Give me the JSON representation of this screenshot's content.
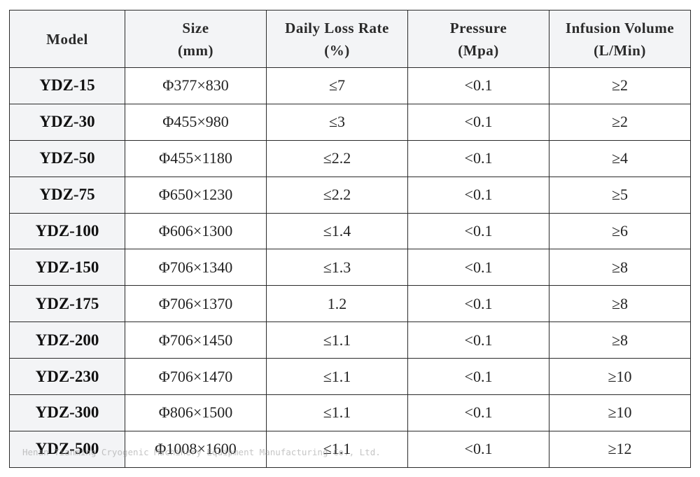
{
  "table": {
    "headers": [
      {
        "line1": "Model",
        "line2": ""
      },
      {
        "line1": "Size",
        "line2": "(mm)"
      },
      {
        "line1": "Daily Loss Rate",
        "line2": "(%)"
      },
      {
        "line1": "Pressure",
        "line2": "(Mpa)"
      },
      {
        "line1": "Infusion Volume",
        "line2": "(L/Min)"
      }
    ],
    "rows": [
      {
        "model": "YDZ-15",
        "size": "Φ377×830",
        "loss": "≤7",
        "pressure": "<0.1",
        "volume": "≥2"
      },
      {
        "model": "YDZ-30",
        "size": "Φ455×980",
        "loss": "≤3",
        "pressure": "<0.1",
        "volume": "≥2"
      },
      {
        "model": "YDZ-50",
        "size": "Φ455×1180",
        "loss": "≤2.2",
        "pressure": "<0.1",
        "volume": "≥4"
      },
      {
        "model": "YDZ-75",
        "size": "Φ650×1230",
        "loss": "≤2.2",
        "pressure": "<0.1",
        "volume": "≥5"
      },
      {
        "model": "YDZ-100",
        "size": "Φ606×1300",
        "loss": "≤1.4",
        "pressure": "<0.1",
        "volume": "≥6"
      },
      {
        "model": "YDZ-150",
        "size": "Φ706×1340",
        "loss": "≤1.3",
        "pressure": "<0.1",
        "volume": "≥8"
      },
      {
        "model": "YDZ-175",
        "size": "Φ706×1370",
        "loss": "1.2",
        "pressure": "<0.1",
        "volume": "≥8"
      },
      {
        "model": "YDZ-200",
        "size": "Φ706×1450",
        "loss": "≤1.1",
        "pressure": "<0.1",
        "volume": "≥8"
      },
      {
        "model": "YDZ-230",
        "size": "Φ706×1470",
        "loss": "≤1.1",
        "pressure": "<0.1",
        "volume": "≥10"
      },
      {
        "model": "YDZ-300",
        "size": "Φ806×1500",
        "loss": "≤1.1",
        "pressure": "<0.1",
        "volume": "≥10"
      },
      {
        "model": "YDZ-500",
        "size": "Φ1008×1600",
        "loss": "≤1.1",
        "pressure": "<0.1",
        "volume": "≥12"
      }
    ]
  },
  "watermark": {
    "text": "Henan Tianming Cryogenic Machinery Equipment Manufacturing Co., Ltd."
  },
  "colors": {
    "header_bg": "#f3f4f6",
    "border": "#2b2b2b",
    "text": "#222222"
  }
}
